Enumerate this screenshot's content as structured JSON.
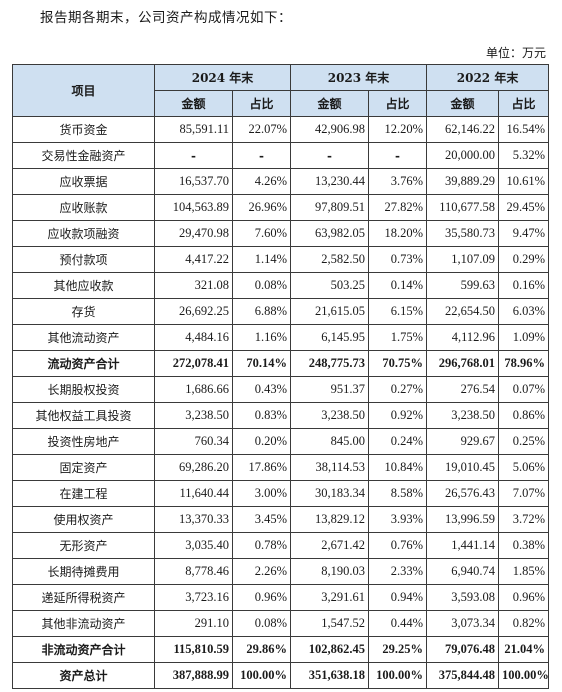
{
  "intro_text": "报告期各期末，公司资产构成情况如下：",
  "unit_text": "单位：万元",
  "header": {
    "item_label": "项目",
    "years": [
      "2024 年末",
      "2023 年末",
      "2022 年末"
    ],
    "amount_label": "金额",
    "ratio_label": "占比"
  },
  "rows": [
    {
      "item": "货币资金",
      "y2024_amt": "85,591.11",
      "y2024_pct": "22.07%",
      "y2023_amt": "42,906.98",
      "y2023_pct": "12.20%",
      "y2022_amt": "62,146.22",
      "y2022_pct": "16.54%"
    },
    {
      "item": "交易性金融资产",
      "y2024_amt": "-",
      "y2024_pct": "-",
      "y2023_amt": "-",
      "y2023_pct": "-",
      "y2022_amt": "20,000.00",
      "y2022_pct": "5.32%"
    },
    {
      "item": "应收票据",
      "y2024_amt": "16,537.70",
      "y2024_pct": "4.26%",
      "y2023_amt": "13,230.44",
      "y2023_pct": "3.76%",
      "y2022_amt": "39,889.29",
      "y2022_pct": "10.61%"
    },
    {
      "item": "应收账款",
      "y2024_amt": "104,563.89",
      "y2024_pct": "26.96%",
      "y2023_amt": "97,809.51",
      "y2023_pct": "27.82%",
      "y2022_amt": "110,677.58",
      "y2022_pct": "29.45%"
    },
    {
      "item": "应收款项融资",
      "y2024_amt": "29,470.98",
      "y2024_pct": "7.60%",
      "y2023_amt": "63,982.05",
      "y2023_pct": "18.20%",
      "y2022_amt": "35,580.73",
      "y2022_pct": "9.47%"
    },
    {
      "item": "预付款项",
      "y2024_amt": "4,417.22",
      "y2024_pct": "1.14%",
      "y2023_amt": "2,582.50",
      "y2023_pct": "0.73%",
      "y2022_amt": "1,107.09",
      "y2022_pct": "0.29%"
    },
    {
      "item": "其他应收款",
      "y2024_amt": "321.08",
      "y2024_pct": "0.08%",
      "y2023_amt": "503.25",
      "y2023_pct": "0.14%",
      "y2022_amt": "599.63",
      "y2022_pct": "0.16%"
    },
    {
      "item": "存货",
      "y2024_amt": "26,692.25",
      "y2024_pct": "6.88%",
      "y2023_amt": "21,615.05",
      "y2023_pct": "6.15%",
      "y2022_amt": "22,654.50",
      "y2022_pct": "6.03%"
    },
    {
      "item": "其他流动资产",
      "y2024_amt": "4,484.16",
      "y2024_pct": "1.16%",
      "y2023_amt": "6,145.95",
      "y2023_pct": "1.75%",
      "y2022_amt": "4,112.96",
      "y2022_pct": "1.09%"
    },
    {
      "item": "流动资产合计",
      "total": true,
      "y2024_amt": "272,078.41",
      "y2024_pct": "70.14%",
      "y2023_amt": "248,775.73",
      "y2023_pct": "70.75%",
      "y2022_amt": "296,768.01",
      "y2022_pct": "78.96%"
    },
    {
      "item": "长期股权投资",
      "y2024_amt": "1,686.66",
      "y2024_pct": "0.43%",
      "y2023_amt": "951.37",
      "y2023_pct": "0.27%",
      "y2022_amt": "276.54",
      "y2022_pct": "0.07%"
    },
    {
      "item": "其他权益工具投资",
      "y2024_amt": "3,238.50",
      "y2024_pct": "0.83%",
      "y2023_amt": "3,238.50",
      "y2023_pct": "0.92%",
      "y2022_amt": "3,238.50",
      "y2022_pct": "0.86%"
    },
    {
      "item": "投资性房地产",
      "y2024_amt": "760.34",
      "y2024_pct": "0.20%",
      "y2023_amt": "845.00",
      "y2023_pct": "0.24%",
      "y2022_amt": "929.67",
      "y2022_pct": "0.25%"
    },
    {
      "item": "固定资产",
      "y2024_amt": "69,286.20",
      "y2024_pct": "17.86%",
      "y2023_amt": "38,114.53",
      "y2023_pct": "10.84%",
      "y2022_amt": "19,010.45",
      "y2022_pct": "5.06%"
    },
    {
      "item": "在建工程",
      "y2024_amt": "11,640.44",
      "y2024_pct": "3.00%",
      "y2023_amt": "30,183.34",
      "y2023_pct": "8.58%",
      "y2022_amt": "26,576.43",
      "y2022_pct": "7.07%"
    },
    {
      "item": "使用权资产",
      "y2024_amt": "13,370.33",
      "y2024_pct": "3.45%",
      "y2023_amt": "13,829.12",
      "y2023_pct": "3.93%",
      "y2022_amt": "13,996.59",
      "y2022_pct": "3.72%"
    },
    {
      "item": "无形资产",
      "y2024_amt": "3,035.40",
      "y2024_pct": "0.78%",
      "y2023_amt": "2,671.42",
      "y2023_pct": "0.76%",
      "y2022_amt": "1,441.14",
      "y2022_pct": "0.38%"
    },
    {
      "item": "长期待摊费用",
      "y2024_amt": "8,778.46",
      "y2024_pct": "2.26%",
      "y2023_amt": "8,190.03",
      "y2023_pct": "2.33%",
      "y2022_amt": "6,940.74",
      "y2022_pct": "1.85%"
    },
    {
      "item": "递延所得税资产",
      "y2024_amt": "3,723.16",
      "y2024_pct": "0.96%",
      "y2023_amt": "3,291.61",
      "y2023_pct": "0.94%",
      "y2022_amt": "3,593.08",
      "y2022_pct": "0.96%"
    },
    {
      "item": "其他非流动资产",
      "y2024_amt": "291.10",
      "y2024_pct": "0.08%",
      "y2023_amt": "1,547.52",
      "y2023_pct": "0.44%",
      "y2022_amt": "3,073.34",
      "y2022_pct": "0.82%"
    },
    {
      "item": "非流动资产合计",
      "total": true,
      "y2024_amt": "115,810.59",
      "y2024_pct": "29.86%",
      "y2023_amt": "102,862.45",
      "y2023_pct": "29.25%",
      "y2022_amt": "79,076.48",
      "y2022_pct": "21.04%"
    },
    {
      "item": "资产总计",
      "total": true,
      "y2024_amt": "387,888.99",
      "y2024_pct": "100.00%",
      "y2023_amt": "351,638.18",
      "y2023_pct": "100.00%",
      "y2022_amt": "375,844.48",
      "y2022_pct": "100.00%"
    }
  ]
}
